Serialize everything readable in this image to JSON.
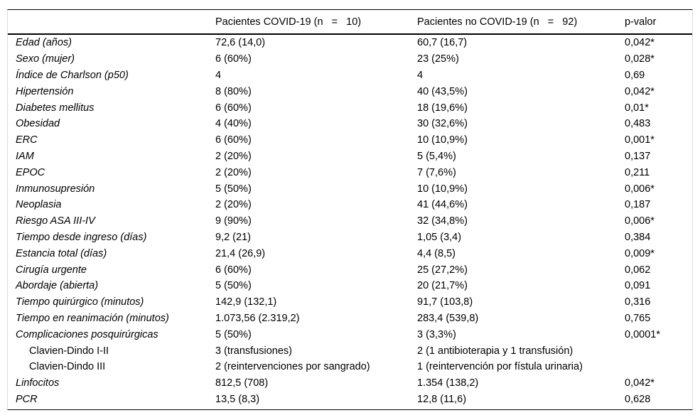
{
  "table": {
    "headers": {
      "col1": "",
      "col2": "Pacientes COVID-19 (n   =   10)",
      "col3": "Pacientes no COVID-19 (n   =   92)",
      "col4": "p-valor"
    },
    "rows": [
      {
        "label": "Edad (años)",
        "italic": true,
        "indent": false,
        "covid": "72,6 (14,0)",
        "no_covid": "60,7 (16,7)",
        "p": "0,042*"
      },
      {
        "label": "Sexo (mujer)",
        "italic": true,
        "indent": false,
        "covid": "6 (60%)",
        "no_covid": "23 (25%)",
        "p": "0,028*"
      },
      {
        "label": "Índice de Charlson (p50)",
        "italic": true,
        "indent": false,
        "covid": "4",
        "no_covid": "4",
        "p": "0,69"
      },
      {
        "label": "Hipertensión",
        "italic": true,
        "indent": false,
        "covid": "8 (80%)",
        "no_covid": "40 (43,5%)",
        "p": "0,042*"
      },
      {
        "label": "Diabetes mellitus",
        "italic": true,
        "indent": false,
        "covid": "6 (60%)",
        "no_covid": "18 (19,6%)",
        "p": "0,01*"
      },
      {
        "label": "Obesidad",
        "italic": true,
        "indent": false,
        "covid": "4 (40%)",
        "no_covid": "30 (32,6%)",
        "p": "0,483"
      },
      {
        "label": "ERC",
        "italic": true,
        "indent": false,
        "covid": "6 (60%)",
        "no_covid": "10 (10,9%)",
        "p": "0,001*"
      },
      {
        "label": "IAM",
        "italic": true,
        "indent": false,
        "covid": "2 (20%)",
        "no_covid": "5 (5,4%)",
        "p": "0,137"
      },
      {
        "label": "EPOC",
        "italic": true,
        "indent": false,
        "covid": "2 (20%)",
        "no_covid": "7 (7,6%)",
        "p": "0,211"
      },
      {
        "label": "Inmunosupresión",
        "italic": true,
        "indent": false,
        "covid": "5 (50%)",
        "no_covid": "10 (10,9%)",
        "p": "0,006*"
      },
      {
        "label": "Neoplasia",
        "italic": true,
        "indent": false,
        "covid": "2 (20%)",
        "no_covid": "41 (44,6%)",
        "p": "0,187"
      },
      {
        "label": "Riesgo ASA III-IV",
        "italic": true,
        "indent": false,
        "covid": "9 (90%)",
        "no_covid": "32 (34,8%)",
        "p": "0,006*"
      },
      {
        "label": "Tiempo desde ingreso (días)",
        "italic": true,
        "indent": false,
        "covid": "9,2 (21)",
        "no_covid": "1,05 (3,4)",
        "p": "0,384"
      },
      {
        "label": "Estancia total (días)",
        "italic": true,
        "indent": false,
        "covid": "21,4 (26,9)",
        "no_covid": "4,4 (8,5)",
        "p": "0,009*"
      },
      {
        "label": "Cirugía urgente",
        "italic": true,
        "indent": false,
        "covid": "6 (60%)",
        "no_covid": "25 (27,2%)",
        "p": "0,062"
      },
      {
        "label": "Abordaje (abierta)",
        "italic": true,
        "indent": false,
        "covid": "5 (50%)",
        "no_covid": "20 (21,7%)",
        "p": "0,091"
      },
      {
        "label": "Tiempo quirúrgico (minutos)",
        "italic": true,
        "indent": false,
        "covid": "142,9 (132,1)",
        "no_covid": "91,7 (103,8)",
        "p": "0,316"
      },
      {
        "label": "Tiempo en reanimación (minutos)",
        "italic": true,
        "indent": false,
        "covid": "1.073,56 (2.319,2)",
        "no_covid": "283,4 (539,8)",
        "p": "0,765"
      },
      {
        "label": "Complicaciones posquirúrgicas",
        "italic": true,
        "indent": false,
        "covid": "5 (50%)",
        "no_covid": "3 (3,3%)",
        "p": "0,0001*"
      },
      {
        "label": "Clavien-Dindo I-II",
        "italic": false,
        "indent": true,
        "covid": "3 (transfusiones)",
        "no_covid": "2 (1 antibioterapia y 1 transfusión)",
        "p": ""
      },
      {
        "label": "Clavien-Dindo III",
        "italic": false,
        "indent": true,
        "covid": "2 (reintervenciones por sangrado)",
        "no_covid": "1 (reintervención por fístula urinaria)",
        "p": ""
      },
      {
        "label": "Linfocitos",
        "italic": true,
        "indent": false,
        "covid": "812,5 (708)",
        "no_covid": "1.354 (138,2)",
        "p": "0,042*"
      },
      {
        "label": "PCR",
        "italic": true,
        "indent": false,
        "covid": "13,5 (8,3)",
        "no_covid": "12,8 (11,6)",
        "p": "0,628"
      }
    ]
  },
  "colors": {
    "rule": "#000000",
    "side_border": "#dcdcdc",
    "text": "#000000",
    "background": "#ffffff"
  }
}
